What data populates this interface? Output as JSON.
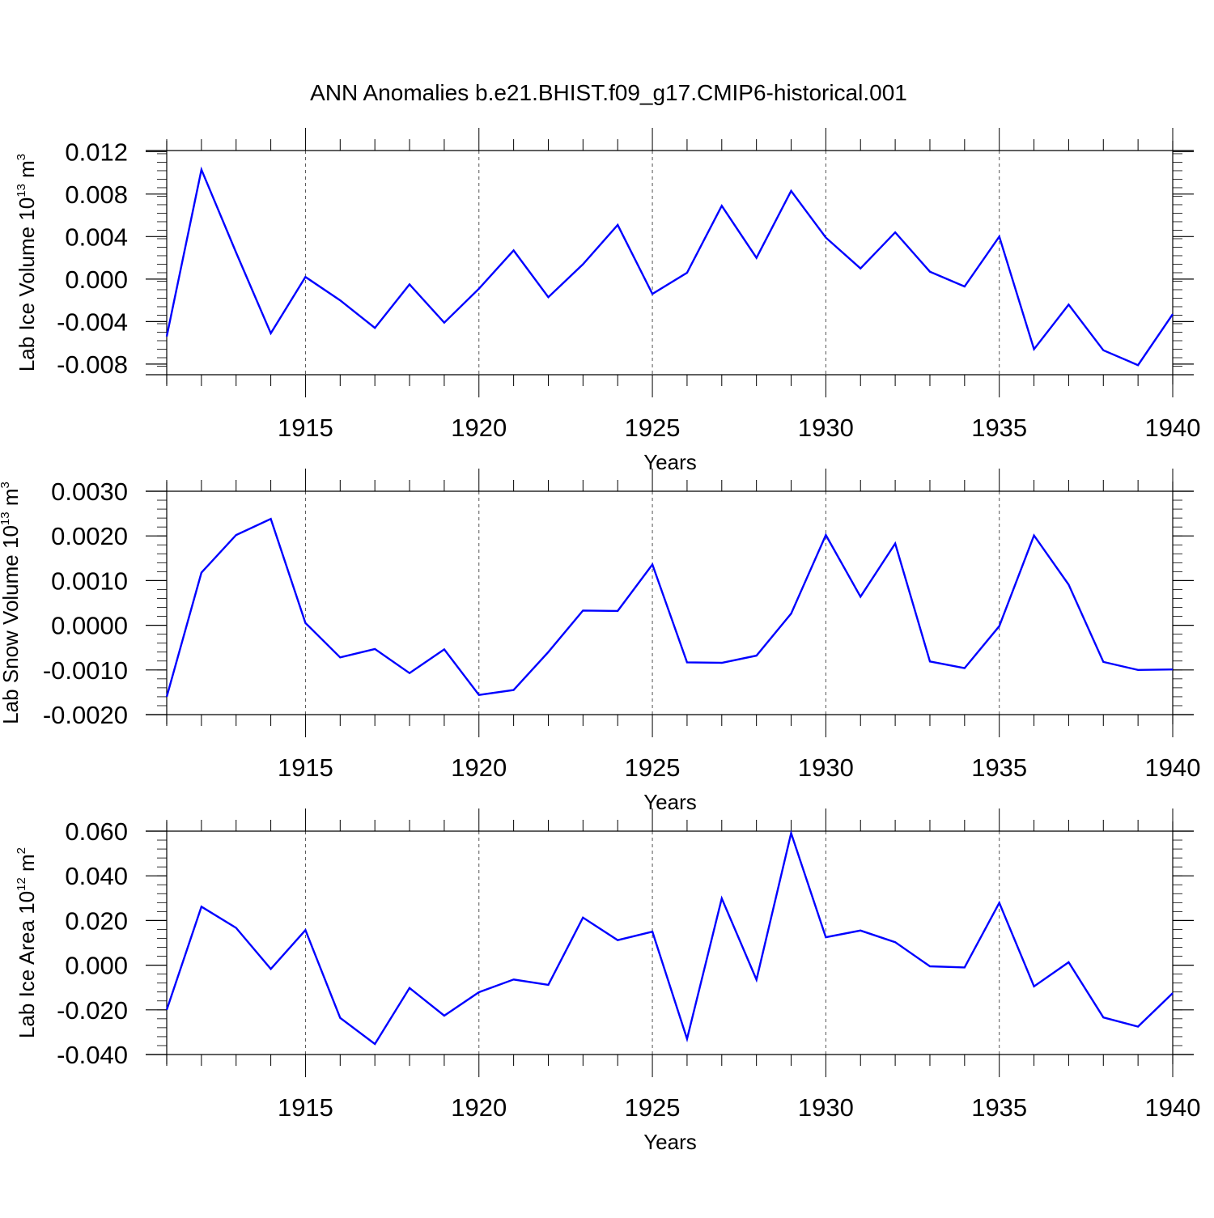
{
  "title": "ANN Anomalies b.e21.BHIST.f09_g17.CMIP6-historical.001",
  "colors": {
    "line": "#0000ff",
    "axis": "#000000",
    "grid": "#555555"
  },
  "chart_data": [
    {
      "type": "line",
      "ylabel": {
        "prefix": "Lab Ice Volume 10",
        "exp": "13",
        "unit": " m",
        "unit_exp": "3"
      },
      "xlabel": "Years",
      "xlim": [
        1911,
        1940
      ],
      "ylim": [
        -0.009,
        0.0121
      ],
      "yticks": [
        -0.008,
        -0.004,
        0.0,
        0.004,
        0.008,
        0.012
      ],
      "ytick_labels": [
        "-0.008",
        "-0.004",
        "0.000",
        "0.004",
        "0.008",
        "0.012"
      ],
      "xticks": [
        1915,
        1920,
        1925,
        1930,
        1935,
        1940
      ],
      "xtick_labels": [
        "1915",
        "1920",
        "1925",
        "1930",
        "1935",
        "1940"
      ],
      "grid": "vertical-dashed",
      "x": [
        1911,
        1912,
        1913,
        1914,
        1915,
        1916,
        1917,
        1918,
        1919,
        1920,
        1921,
        1922,
        1923,
        1924,
        1925,
        1926,
        1927,
        1928,
        1929,
        1930,
        1931,
        1932,
        1933,
        1934,
        1935,
        1936,
        1937,
        1938,
        1939,
        1940
      ],
      "values": [
        -0.0054,
        0.0103,
        0.0025,
        -0.0051,
        0.0002,
        -0.002,
        -0.0046,
        -0.0005,
        -0.0041,
        -0.0009,
        0.0027,
        -0.0017,
        0.0014,
        0.0051,
        -0.0014,
        0.0006,
        0.0069,
        0.002,
        0.0083,
        0.0039,
        0.001,
        0.0044,
        0.0007,
        -0.0007,
        0.004,
        -0.0066,
        -0.0024,
        -0.0067,
        -0.0081,
        -0.0033
      ]
    },
    {
      "type": "line",
      "ylabel": {
        "prefix": "Lab Snow Volume 10",
        "exp": "13",
        "unit": " m",
        "unit_exp": "3"
      },
      "xlabel": "Years",
      "xlim": [
        1911,
        1940
      ],
      "ylim": [
        -0.002,
        0.003
      ],
      "yticks": [
        -0.002,
        -0.001,
        0.0,
        0.001,
        0.002,
        0.003
      ],
      "ytick_labels": [
        "-0.0020",
        "-0.0010",
        "0.0000",
        "0.0010",
        "0.0020",
        "0.0030"
      ],
      "xticks": [
        1915,
        1920,
        1925,
        1930,
        1935,
        1940
      ],
      "xtick_labels": [
        "1915",
        "1920",
        "1925",
        "1930",
        "1935",
        "1940"
      ],
      "grid": "vertical-dashed",
      "x": [
        1911,
        1912,
        1913,
        1914,
        1915,
        1916,
        1917,
        1918,
        1919,
        1920,
        1921,
        1922,
        1923,
        1924,
        1925,
        1926,
        1927,
        1928,
        1929,
        1930,
        1931,
        1932,
        1933,
        1934,
        1935,
        1936,
        1937,
        1938,
        1939,
        1940
      ],
      "values": [
        -0.0016,
        0.00118,
        0.00202,
        0.00238,
        5e-05,
        -0.00072,
        -0.00053,
        -0.00107,
        -0.00054,
        -0.00156,
        -0.00145,
        -0.0006,
        0.00033,
        0.00032,
        0.00136,
        -0.00083,
        -0.00084,
        -0.00068,
        0.00026,
        0.00202,
        0.00064,
        0.00183,
        -0.00081,
        -0.00096,
        -2e-05,
        0.00201,
        0.00091,
        -0.00082,
        -0.001,
        -0.00099
      ]
    },
    {
      "type": "line",
      "ylabel": {
        "prefix": "Lab Ice Area 10",
        "exp": "12",
        "unit": " m",
        "unit_exp": "2"
      },
      "xlabel": "Years",
      "xlim": [
        1911,
        1940
      ],
      "ylim": [
        -0.04,
        0.06
      ],
      "yticks": [
        -0.04,
        -0.02,
        0.0,
        0.02,
        0.04,
        0.06
      ],
      "ytick_labels": [
        "-0.040",
        "-0.020",
        "0.000",
        "0.020",
        "0.040",
        "0.060"
      ],
      "xticks": [
        1915,
        1920,
        1925,
        1930,
        1935,
        1940
      ],
      "xtick_labels": [
        "1915",
        "1920",
        "1925",
        "1930",
        "1935",
        "1940"
      ],
      "grid": "vertical-dashed",
      "x": [
        1911,
        1912,
        1913,
        1914,
        1915,
        1916,
        1917,
        1918,
        1919,
        1920,
        1921,
        1922,
        1923,
        1924,
        1925,
        1926,
        1927,
        1928,
        1929,
        1930,
        1931,
        1932,
        1933,
        1934,
        1935,
        1936,
        1937,
        1938,
        1939,
        1940
      ],
      "values": [
        -0.02,
        0.0262,
        0.0167,
        -0.0017,
        0.0157,
        -0.0236,
        -0.0353,
        -0.0102,
        -0.0226,
        -0.0121,
        -0.0064,
        -0.0088,
        0.0213,
        0.0112,
        0.015,
        -0.033,
        0.0299,
        -0.0065,
        0.0591,
        0.0125,
        0.0155,
        0.0103,
        -0.0005,
        -0.001,
        0.0279,
        -0.0095,
        0.0013,
        -0.0234,
        -0.0275,
        -0.0125
      ]
    }
  ]
}
